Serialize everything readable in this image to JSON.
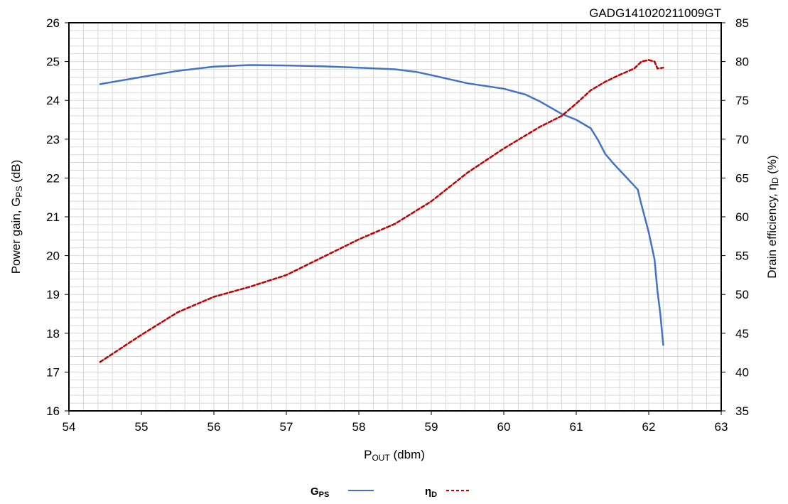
{
  "chart_data": {
    "type": "line",
    "watermark": "GADG141020211009GT",
    "xlabel": {
      "main": "P",
      "sub": "OUT",
      "rest": " (dbm)"
    },
    "ylabel_left": {
      "main": "Power gain, G",
      "sub": "PS",
      "rest": " (dB)"
    },
    "ylabel_right": {
      "main": "Drain efficiency, η",
      "sub": "D",
      "rest": " (%)"
    },
    "xlim": [
      54,
      63
    ],
    "ylim_left": [
      16,
      26
    ],
    "ylim_right": [
      35,
      85
    ],
    "x_ticks": [
      "54",
      "55",
      "56",
      "57",
      "58",
      "59",
      "60",
      "61",
      "62",
      "63"
    ],
    "y_left_ticks": [
      "16",
      "17",
      "18",
      "19",
      "20",
      "21",
      "22",
      "23",
      "24",
      "25",
      "26"
    ],
    "y_right_ticks": [
      "35",
      "40",
      "45",
      "50",
      "55",
      "60",
      "65",
      "70",
      "75",
      "80",
      "85"
    ],
    "grid": true,
    "legend_position": "bottom-center",
    "series": [
      {
        "name": "G",
        "name_sub": "PS",
        "axis": "left",
        "style": "solid",
        "color": "#4472c4",
        "x": [
          54.43,
          55.0,
          55.5,
          56.0,
          56.5,
          57.0,
          57.5,
          58.0,
          58.5,
          58.8,
          59.0,
          59.5,
          60.0,
          60.3,
          60.5,
          60.8,
          61.0,
          61.2,
          61.3,
          61.4,
          61.5,
          61.7,
          61.85,
          61.88,
          62.0,
          62.08,
          62.12,
          62.16,
          62.2
        ],
        "y": [
          24.42,
          24.6,
          24.76,
          24.87,
          24.91,
          24.9,
          24.88,
          24.84,
          24.8,
          24.73,
          24.65,
          24.44,
          24.3,
          24.15,
          23.97,
          23.65,
          23.5,
          23.28,
          22.98,
          22.62,
          22.4,
          22.0,
          21.7,
          21.45,
          20.6,
          19.9,
          19.1,
          18.5,
          17.7
        ]
      },
      {
        "name": "η",
        "name_sub": "D",
        "axis": "right",
        "style": "dashed",
        "color": "#c00000",
        "x": [
          54.43,
          55.0,
          55.5,
          56.0,
          56.5,
          57.0,
          57.5,
          58.0,
          58.5,
          59.0,
          59.5,
          60.0,
          60.5,
          60.8,
          61.0,
          61.2,
          61.4,
          61.6,
          61.8,
          61.9,
          62.0,
          62.08,
          62.12,
          62.2
        ],
        "y": [
          41.3,
          44.8,
          47.7,
          49.7,
          51.0,
          52.5,
          54.8,
          57.1,
          59.1,
          62.0,
          65.7,
          68.8,
          71.6,
          73.0,
          74.6,
          76.3,
          77.4,
          78.3,
          79.1,
          80.0,
          80.2,
          80.0,
          79.1,
          79.2
        ]
      }
    ]
  }
}
